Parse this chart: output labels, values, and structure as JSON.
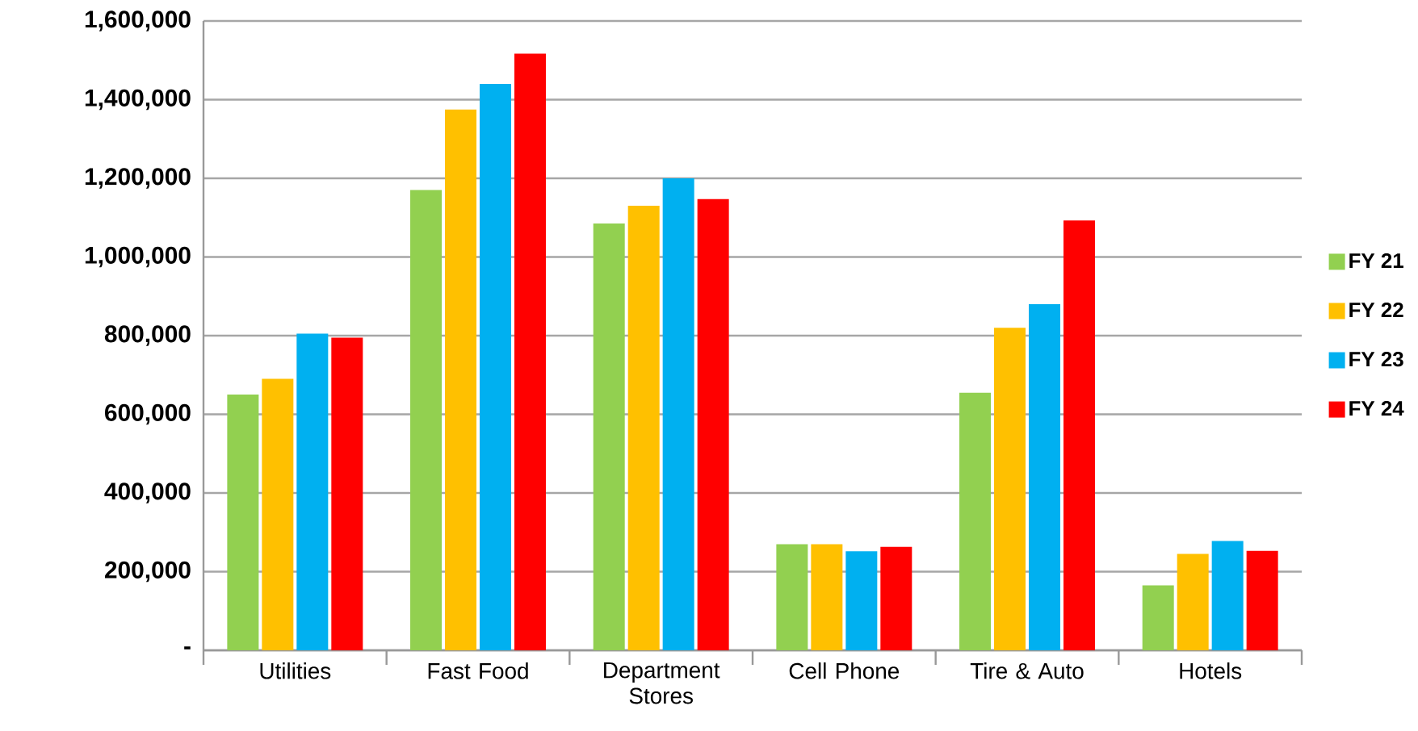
{
  "chart_data": {
    "type": "bar",
    "categories": [
      "Utilities",
      "Fast Food",
      "Department Stores",
      "Cell Phone",
      "Tire & Auto",
      "Hotels"
    ],
    "series": [
      {
        "name": "FY 21",
        "color": "#92d050",
        "values": [
          650000,
          1170000,
          1085000,
          270000,
          655000,
          165000
        ]
      },
      {
        "name": "FY 22",
        "color": "#ffc000",
        "values": [
          690000,
          1375000,
          1130000,
          270000,
          820000,
          245000
        ]
      },
      {
        "name": "FY 23",
        "color": "#00b0f0",
        "values": [
          805000,
          1440000,
          1200000,
          252000,
          880000,
          278000
        ]
      },
      {
        "name": "FY 24",
        "color": "#ff0000",
        "values": [
          795000,
          1517000,
          1147000,
          263000,
          1093000,
          253000
        ]
      }
    ],
    "ylim": [
      0,
      1600000
    ],
    "yticks": [
      {
        "value": 0,
        "label": "-"
      },
      {
        "value": 200000,
        "label": "200,000"
      },
      {
        "value": 400000,
        "label": "400,000"
      },
      {
        "value": 600000,
        "label": "600,000"
      },
      {
        "value": 800000,
        "label": "800,000"
      },
      {
        "value": 1000000,
        "label": "1,000,000"
      },
      {
        "value": 1200000,
        "label": "1,200,000"
      },
      {
        "value": 1400000,
        "label": "1,400,000"
      },
      {
        "value": 1600000,
        "label": "1,600,000"
      }
    ],
    "grid": "y",
    "legend": "right"
  }
}
